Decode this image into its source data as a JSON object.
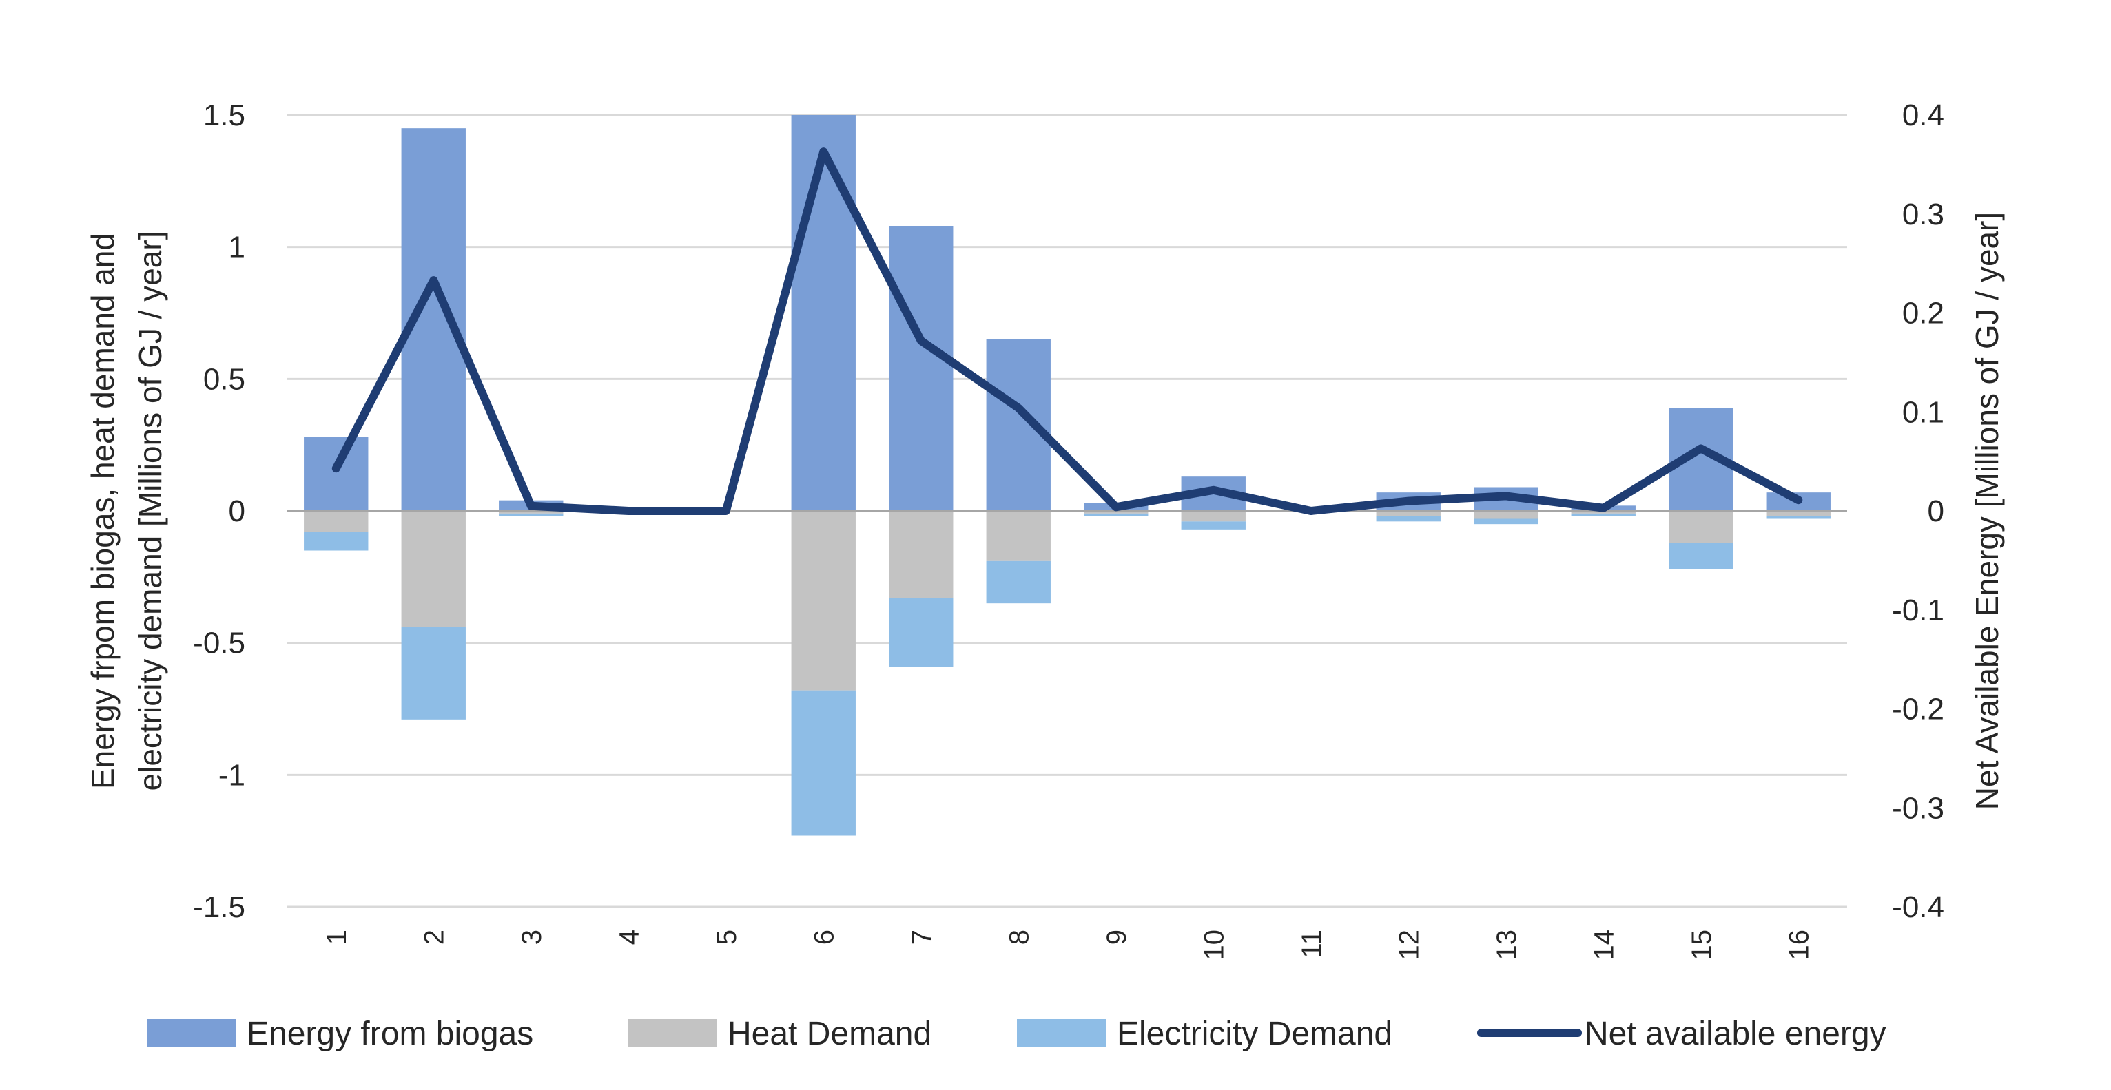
{
  "chart_data": {
    "type": "bar",
    "stacked": true,
    "categories": [
      "1",
      "2",
      "3",
      "4",
      "5",
      "6",
      "7",
      "8",
      "9",
      "10",
      "11",
      "12",
      "13",
      "14",
      "15",
      "16"
    ],
    "series": [
      {
        "name": "Energy from biogas",
        "axis": "left",
        "kind": "bar",
        "color": "#7A9ED6",
        "values": [
          0.28,
          1.45,
          0.04,
          0,
          0,
          1.5,
          1.08,
          0.65,
          0.03,
          0.13,
          0,
          0.07,
          0.09,
          0.02,
          0.39,
          0.07
        ]
      },
      {
        "name": "Heat Demand",
        "axis": "left",
        "kind": "bar",
        "color": "#C3C3C3",
        "values": [
          -0.08,
          -0.44,
          -0.01,
          0,
          0,
          -0.68,
          -0.33,
          -0.19,
          -0.01,
          -0.04,
          0,
          -0.02,
          -0.03,
          -0.01,
          -0.12,
          -0.02
        ]
      },
      {
        "name": "Electricity Demand",
        "axis": "left",
        "kind": "bar",
        "color": "#8EBDE6",
        "values": [
          -0.07,
          -0.35,
          -0.01,
          0,
          0,
          -0.55,
          -0.26,
          -0.16,
          -0.01,
          -0.03,
          0,
          -0.02,
          -0.02,
          -0.01,
          -0.1,
          -0.01
        ]
      },
      {
        "name": "Net available energy",
        "axis": "right",
        "kind": "line",
        "color": "#1F3D73",
        "values": [
          0.043,
          0.233,
          0.005,
          0,
          0,
          0.363,
          0.172,
          0.104,
          0.004,
          0.021,
          0,
          0.01,
          0.015,
          0.003,
          0.063,
          0.011
        ]
      }
    ],
    "ylabel_left": "Energy frpom biogas, heat demand and electricity demand   [Millions of GJ / year]",
    "ylabel_left_lines": [
      "Energy frpom biogas, heat demand and",
      "electricity demand   [Millions of GJ / year]"
    ],
    "ylabel_right": "Net Available Energy [Millions of GJ / year]",
    "ylim_left": [
      -1.5,
      1.5
    ],
    "ylim_right": [
      -0.4,
      0.4
    ],
    "yticks_left": [
      "1.5",
      "1",
      "0.5",
      "0",
      "-0.5",
      "-1",
      "-1.5"
    ],
    "yticks_left_values": [
      1.5,
      1,
      0.5,
      0,
      -0.5,
      -1,
      -1.5
    ],
    "yticks_right": [
      "0.4",
      "0.3",
      "0.2",
      "0.1",
      "0",
      "-0.1",
      "-0.2",
      "-0.3",
      "-0.4"
    ],
    "yticks_right_values": [
      0.4,
      0.3,
      0.2,
      0.1,
      0,
      -0.1,
      -0.2,
      -0.3,
      -0.4
    ],
    "grid": true,
    "legend_position": "bottom",
    "axis_line_color": "#A6A6A6",
    "grid_color": "#D9D9D9"
  }
}
